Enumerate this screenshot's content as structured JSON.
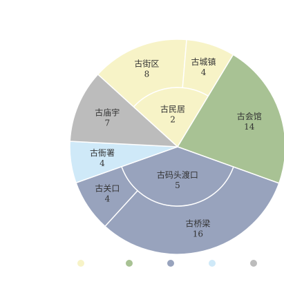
{
  "chart_data": {
    "type": "pie",
    "title": "",
    "legend_position": "bottom",
    "groups": [
      {
        "color": "#f7f3c7",
        "items": [
          {
            "label": "古街区",
            "value": 8
          },
          {
            "label": "古城镇",
            "value": 4
          },
          {
            "label": "古民居",
            "value": 2
          }
        ]
      },
      {
        "color": "#a8c294",
        "items": [
          {
            "label": "古会馆",
            "value": 14
          }
        ]
      },
      {
        "color": "#98a3bd",
        "items": [
          {
            "label": "古桥梁",
            "value": 16
          },
          {
            "label": "古关口",
            "value": 4
          },
          {
            "label": "古码头渡口",
            "value": 5
          }
        ]
      },
      {
        "color": "#cfe9f8",
        "items": [
          {
            "label": "古衙署",
            "value": 4
          }
        ]
      },
      {
        "color": "#bcbcbc",
        "items": [
          {
            "label": "古庙宇",
            "value": 7
          }
        ]
      }
    ]
  }
}
